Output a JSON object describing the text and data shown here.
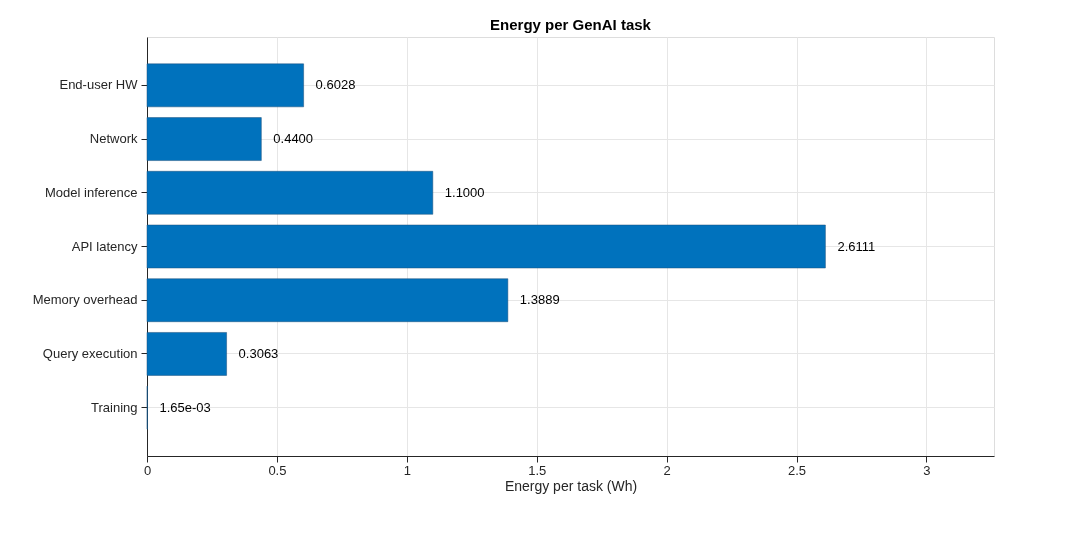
{
  "chart_data": {
    "type": "bar",
    "orientation": "horizontal",
    "title": "Energy per GenAI task",
    "xlabel": "Energy per task (Wh)",
    "categories": [
      "End-user HW",
      "Network",
      "Model inference",
      "API latency",
      "Memory overhead",
      "Query execution",
      "Training"
    ],
    "values": [
      0.6028,
      0.44,
      1.1,
      2.6111,
      1.3889,
      0.3063,
      0.00165
    ],
    "value_labels": [
      "0.6028",
      "0.4400",
      "1.1000",
      "2.6111",
      "1.3889",
      "0.3063",
      "1.65e-03"
    ],
    "color": "#0072bd",
    "xlim": [
      0,
      3.26
    ],
    "xticks": [
      0,
      0.5,
      1,
      1.5,
      2,
      2.5,
      3
    ],
    "grid": true
  }
}
